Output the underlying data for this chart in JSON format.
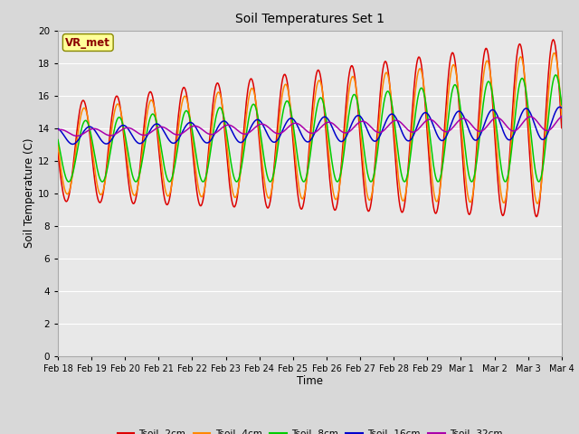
{
  "title": "Soil Temperatures Set 1",
  "xlabel": "Time",
  "ylabel": "Soil Temperature (C)",
  "ylim": [
    0,
    20
  ],
  "yticks": [
    0,
    2,
    4,
    6,
    8,
    10,
    12,
    14,
    16,
    18,
    20
  ],
  "x_labels": [
    "Feb 18",
    "Feb 19",
    "Feb 20",
    "Feb 21",
    "Feb 22",
    "Feb 23",
    "Feb 24",
    "Feb 25",
    "Feb 26",
    "Feb 27",
    "Feb 28",
    "Feb 29",
    "Mar 1",
    "Mar 2",
    "Mar 3",
    "Mar 4"
  ],
  "line_colors": {
    "Tsoil -2cm": "#dd0000",
    "Tsoil -4cm": "#ff8800",
    "Tsoil -8cm": "#00cc00",
    "Tsoil -16cm": "#0000cc",
    "Tsoil -32cm": "#aa00aa"
  },
  "annotation_text": "VR_met",
  "fig_bg_color": "#d8d8d8",
  "plot_bg_color": "#e8e8e8",
  "grid_color": "#ffffff",
  "n_days": 15,
  "points_per_day": 48
}
